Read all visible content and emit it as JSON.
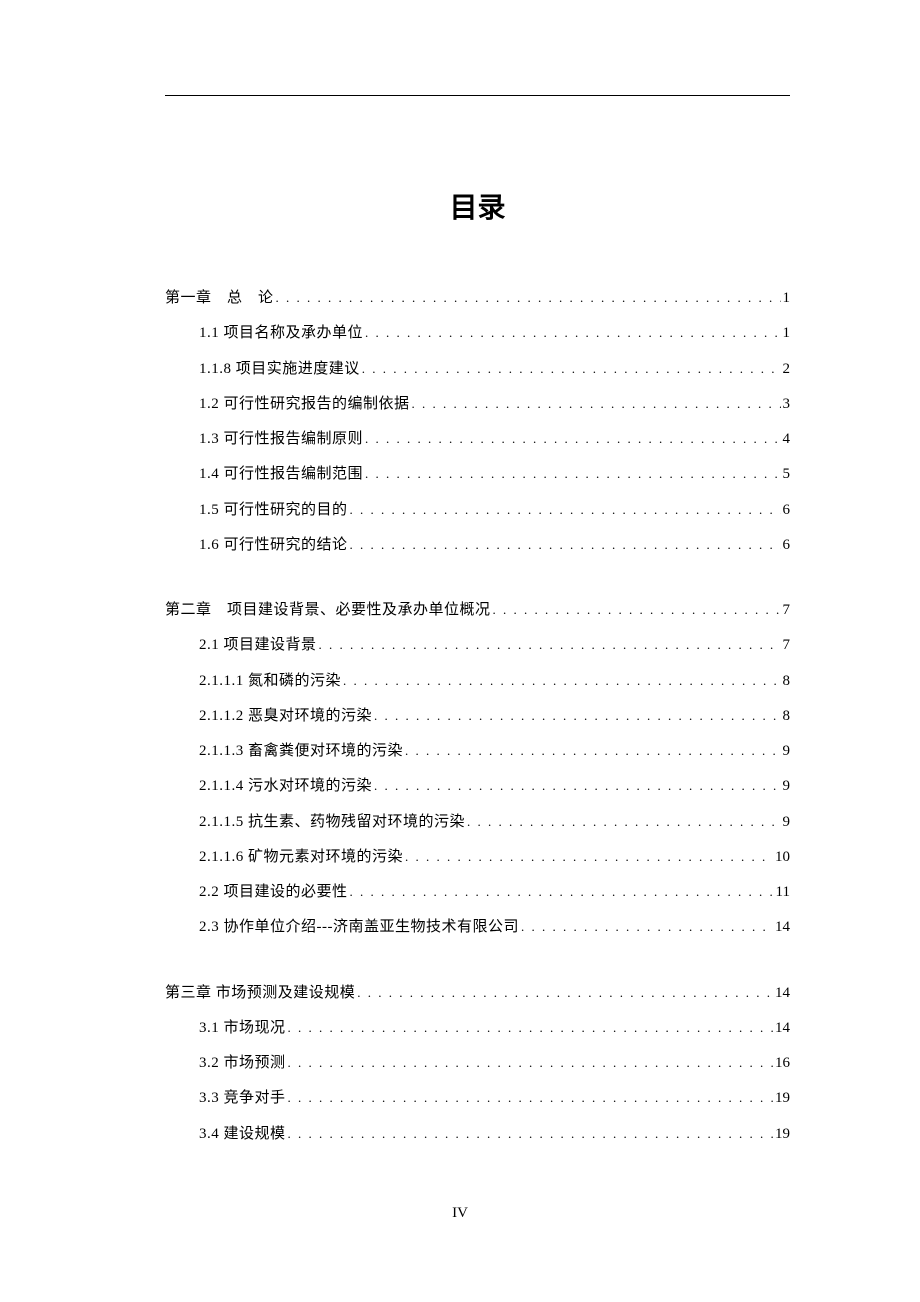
{
  "title": "目录",
  "page_number": "IV",
  "typography": {
    "title_fontsize": 28,
    "body_fontsize": 15,
    "line_height": 2.35,
    "font_family": "SimSun",
    "text_color": "#000000",
    "background_color": "#ffffff"
  },
  "groups": [
    {
      "entries": [
        {
          "level": 1,
          "label": "第一章　总　论",
          "page": "1"
        },
        {
          "level": 2,
          "label": "1.1 项目名称及承办单位",
          "page": "1"
        },
        {
          "level": 2,
          "label": "1.1.8 项目实施进度建议",
          "page": "2"
        },
        {
          "level": 2,
          "label": "1.2 可行性研究报告的编制依据",
          "page": "3"
        },
        {
          "level": 2,
          "label": "1.3 可行性报告编制原则",
          "page": "4"
        },
        {
          "level": 2,
          "label": "1.4 可行性报告编制范围",
          "page": "5"
        },
        {
          "level": 2,
          "label": "1.5 可行性研究的目的",
          "page": "6"
        },
        {
          "level": 2,
          "label": "1.6 可行性研究的结论",
          "page": "6"
        }
      ]
    },
    {
      "entries": [
        {
          "level": 1,
          "label": "第二章　项目建设背景、必要性及承办单位概况",
          "page": "7"
        },
        {
          "level": 2,
          "label": "2.1 项目建设背景",
          "page": "7"
        },
        {
          "level": 2,
          "label": "2.1.1.1 氮和磷的污染",
          "page": "8"
        },
        {
          "level": 2,
          "label": "2.1.1.2 恶臭对环境的污染",
          "page": "8"
        },
        {
          "level": 2,
          "label": "2.1.1.3 畜禽粪便对环境的污染",
          "page": "9"
        },
        {
          "level": 2,
          "label": "2.1.1.4 污水对环境的污染",
          "page": "9"
        },
        {
          "level": 2,
          "label": "2.1.1.5 抗生素、药物残留对环境的污染",
          "page": "9"
        },
        {
          "level": 2,
          "label": "2.1.1.6 矿物元素对环境的污染",
          "page": "10"
        },
        {
          "level": 2,
          "label": "2.2 项目建设的必要性",
          "page": "11"
        },
        {
          "level": 2,
          "label": "2.3 协作单位介绍---济南盖亚生物技术有限公司",
          "page": "14"
        }
      ]
    },
    {
      "entries": [
        {
          "level": 1,
          "label": "第三章 市场预测及建设规模",
          "page": "14"
        },
        {
          "level": 2,
          "label": "3.1 市场现况",
          "page": "14"
        },
        {
          "level": 2,
          "label": "3.2 市场预测",
          "page": "16"
        },
        {
          "level": 2,
          "label": "3.3 竞争对手",
          "page": "19"
        },
        {
          "level": 2,
          "label": "3.4 建设规模",
          "page": "19"
        }
      ]
    }
  ]
}
